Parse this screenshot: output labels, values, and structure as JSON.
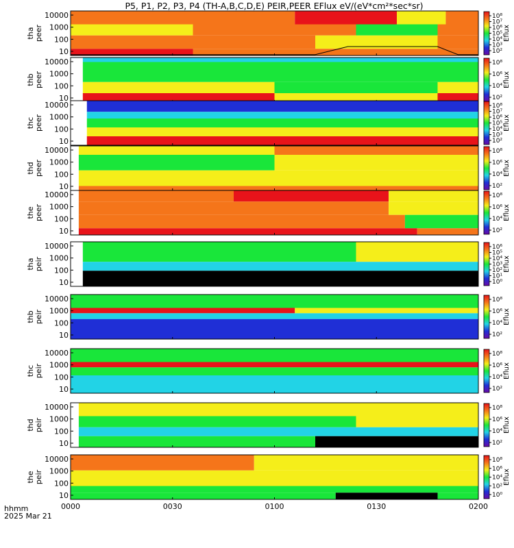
{
  "title": "P5, P1, P2, P3, P4 (TH-A,B,C,D,E) PEIR,PEER EFlux eV/(eV*cm²*sec*sr)",
  "x_axis": {
    "label_line1": "hhmm",
    "label_line2": "2025 Mar 21",
    "ticks": [
      "0000",
      "0030",
      "0100",
      "0130",
      "0200"
    ]
  },
  "colors": {
    "black": "#000000",
    "violet": "#6a0aa8",
    "blue": "#1f2fd6",
    "cyan": "#22d3e6",
    "green": "#19e63a",
    "yellow": "#f5ee1a",
    "orange": "#f5751a",
    "red": "#e8131a",
    "white": "#ffffff"
  },
  "chart_data": [
    {
      "type": "heatmap",
      "probe_label": "tha",
      "species_label": "peer",
      "ylabel": "tha\npeer",
      "cbar_label": "Eflux",
      "cbar_ticks": [
        "10⁸",
        "10⁷",
        "10⁶",
        "10⁵",
        "10⁴",
        "10³",
        "10²"
      ],
      "yticks": [
        "10000",
        "1000",
        "100",
        "10"
      ],
      "x_range": [
        "0000",
        "0200"
      ],
      "bands": [
        {
          "y0": 0.0,
          "y1": 0.3,
          "segments": [
            {
              "t0": 0,
              "t1": 0.55,
              "color": "orange"
            },
            {
              "t0": 0.55,
              "t1": 0.8,
              "color": "red"
            },
            {
              "t0": 0.8,
              "t1": 0.92,
              "color": "yellow"
            },
            {
              "t0": 0.92,
              "t1": 1,
              "color": "orange"
            }
          ]
        },
        {
          "y0": 0.3,
          "y1": 0.55,
          "segments": [
            {
              "t0": 0,
              "t1": 0.3,
              "color": "yellow"
            },
            {
              "t0": 0.3,
              "t1": 0.7,
              "color": "orange"
            },
            {
              "t0": 0.7,
              "t1": 0.9,
              "color": "green"
            },
            {
              "t0": 0.9,
              "t1": 1,
              "color": "orange"
            }
          ]
        },
        {
          "y0": 0.55,
          "y1": 0.85,
          "segments": [
            {
              "t0": 0,
              "t1": 0.6,
              "color": "orange"
            },
            {
              "t0": 0.6,
              "t1": 0.9,
              "color": "yellow"
            },
            {
              "t0": 0.9,
              "t1": 1,
              "color": "orange"
            }
          ]
        },
        {
          "y0": 0.85,
          "y1": 1.0,
          "segments": [
            {
              "t0": 0,
              "t1": 0.3,
              "color": "red"
            },
            {
              "t0": 0.3,
              "t1": 1,
              "color": "orange"
            }
          ]
        }
      ],
      "potential_line": [
        [
          0.0,
          0.98
        ],
        [
          0.6,
          0.98
        ],
        [
          0.68,
          0.8
        ],
        [
          0.9,
          0.8
        ],
        [
          0.95,
          0.98
        ],
        [
          1,
          0.98
        ]
      ]
    },
    {
      "type": "heatmap",
      "probe_label": "thb",
      "species_label": "peer",
      "ylabel": "thb\npeer",
      "cbar_label": "Eflux",
      "cbar_ticks": [
        "10⁸",
        "10⁶",
        "10⁴",
        "10²"
      ],
      "yticks": [
        "10000",
        "1000",
        "100",
        "10"
      ],
      "x_range": [
        "0000",
        "0200"
      ],
      "bands": [
        {
          "y0": 0.0,
          "y1": 0.1,
          "segments": [
            {
              "t0": 0.03,
              "t1": 1,
              "color": "cyan"
            }
          ]
        },
        {
          "y0": 0.1,
          "y1": 0.55,
          "segments": [
            {
              "t0": 0.03,
              "t1": 1,
              "color": "green"
            }
          ]
        },
        {
          "y0": 0.55,
          "y1": 0.8,
          "segments": [
            {
              "t0": 0.03,
              "t1": 0.5,
              "color": "yellow"
            },
            {
              "t0": 0.5,
              "t1": 0.9,
              "color": "green"
            },
            {
              "t0": 0.9,
              "t1": 1,
              "color": "yellow"
            }
          ]
        },
        {
          "y0": 0.8,
          "y1": 1.0,
          "segments": [
            {
              "t0": 0.03,
              "t1": 0.5,
              "color": "red"
            },
            {
              "t0": 0.5,
              "t1": 0.9,
              "color": "yellow"
            },
            {
              "t0": 0.9,
              "t1": 1,
              "color": "red"
            }
          ]
        }
      ]
    },
    {
      "type": "heatmap",
      "probe_label": "thc",
      "species_label": "peer",
      "ylabel": "thc\npeer",
      "cbar_label": "Eflux",
      "cbar_ticks": [
        "10⁸",
        "10⁷",
        "10⁶",
        "10⁵",
        "10⁴",
        "10³",
        "10²"
      ],
      "yticks": [
        "10000",
        "1000",
        "100",
        "10"
      ],
      "x_range": [
        "0000",
        "0200"
      ],
      "bands": [
        {
          "y0": 0.0,
          "y1": 0.25,
          "segments": [
            {
              "t0": 0.04,
              "t1": 1,
              "color": "blue"
            }
          ]
        },
        {
          "y0": 0.25,
          "y1": 0.4,
          "segments": [
            {
              "t0": 0.04,
              "t1": 1,
              "color": "cyan"
            }
          ]
        },
        {
          "y0": 0.4,
          "y1": 0.6,
          "segments": [
            {
              "t0": 0.04,
              "t1": 1,
              "color": "green"
            }
          ]
        },
        {
          "y0": 0.6,
          "y1": 0.8,
          "segments": [
            {
              "t0": 0.04,
              "t1": 1,
              "color": "yellow"
            }
          ]
        },
        {
          "y0": 0.8,
          "y1": 1.0,
          "segments": [
            {
              "t0": 0.04,
              "t1": 1,
              "color": "red"
            }
          ]
        }
      ]
    },
    {
      "type": "heatmap",
      "probe_label": "thd",
      "species_label": "peer",
      "ylabel": "thd\npeer",
      "cbar_label": "Eflux",
      "cbar_ticks": [
        "10⁸",
        "10⁶",
        "10⁴",
        "10²"
      ],
      "yticks": [
        "10000",
        "1000",
        "100",
        "10"
      ],
      "x_range": [
        "0000",
        "0200"
      ],
      "bands": [
        {
          "y0": 0.0,
          "y1": 0.2,
          "segments": [
            {
              "t0": 0.02,
              "t1": 0.5,
              "color": "yellow"
            },
            {
              "t0": 0.5,
              "t1": 1,
              "color": "orange"
            }
          ]
        },
        {
          "y0": 0.2,
          "y1": 0.55,
          "segments": [
            {
              "t0": 0.02,
              "t1": 0.5,
              "color": "green"
            },
            {
              "t0": 0.5,
              "t1": 1,
              "color": "yellow"
            }
          ]
        },
        {
          "y0": 0.55,
          "y1": 0.9,
          "segments": [
            {
              "t0": 0.02,
              "t1": 1,
              "color": "yellow"
            }
          ]
        },
        {
          "y0": 0.9,
          "y1": 1.0,
          "segments": [
            {
              "t0": 0.02,
              "t1": 1,
              "color": "orange"
            }
          ]
        }
      ]
    },
    {
      "type": "heatmap",
      "probe_label": "the",
      "species_label": "peer",
      "ylabel": "the\npeer",
      "cbar_label": "Eflux",
      "cbar_ticks": [
        "10⁸",
        "10⁶",
        "10⁴",
        "10²"
      ],
      "yticks": [
        "10000",
        "1000",
        "100",
        "10"
      ],
      "x_range": [
        "0000",
        "0200"
      ],
      "bands": [
        {
          "y0": 0.0,
          "y1": 0.25,
          "segments": [
            {
              "t0": 0.02,
              "t1": 0.4,
              "color": "orange"
            },
            {
              "t0": 0.4,
              "t1": 0.78,
              "color": "red"
            },
            {
              "t0": 0.78,
              "t1": 1,
              "color": "yellow"
            }
          ]
        },
        {
          "y0": 0.25,
          "y1": 0.55,
          "segments": [
            {
              "t0": 0.02,
              "t1": 0.78,
              "color": "orange"
            },
            {
              "t0": 0.78,
              "t1": 1,
              "color": "yellow"
            }
          ]
        },
        {
          "y0": 0.55,
          "y1": 0.85,
          "segments": [
            {
              "t0": 0.02,
              "t1": 0.82,
              "color": "orange"
            },
            {
              "t0": 0.82,
              "t1": 1,
              "color": "green"
            }
          ]
        },
        {
          "y0": 0.85,
          "y1": 1.0,
          "segments": [
            {
              "t0": 0.02,
              "t1": 0.85,
              "color": "red"
            },
            {
              "t0": 0.85,
              "t1": 1,
              "color": "orange"
            }
          ]
        }
      ]
    },
    {
      "type": "heatmap",
      "probe_label": "tha",
      "species_label": "peir",
      "ylabel": "tha\npeir",
      "cbar_label": "Eflux",
      "cbar_ticks": [
        "10⁶",
        "10⁵",
        "10⁴",
        "10³",
        "10²",
        "10¹",
        "10⁰"
      ],
      "yticks": [
        "10000",
        "1000",
        "100",
        "10"
      ],
      "x_range": [
        "0000",
        "0200"
      ],
      "bands": [
        {
          "y0": 0.0,
          "y1": 0.2,
          "segments": [
            {
              "t0": 0.03,
              "t1": 0.7,
              "color": "green"
            },
            {
              "t0": 0.7,
              "t1": 1,
              "color": "yellow"
            }
          ]
        },
        {
          "y0": 0.2,
          "y1": 0.45,
          "segments": [
            {
              "t0": 0.03,
              "t1": 0.7,
              "color": "green"
            },
            {
              "t0": 0.7,
              "t1": 1,
              "color": "yellow"
            }
          ]
        },
        {
          "y0": 0.45,
          "y1": 0.65,
          "segments": [
            {
              "t0": 0.03,
              "t1": 1,
              "color": "cyan"
            }
          ]
        },
        {
          "y0": 0.65,
          "y1": 1.0,
          "segments": [
            {
              "t0": 0.03,
              "t1": 1,
              "color": "black"
            }
          ]
        }
      ]
    },
    {
      "type": "heatmap",
      "probe_label": "thb",
      "species_label": "peir",
      "ylabel": "thb\npeir",
      "cbar_label": "Eflux",
      "cbar_ticks": [
        "10⁸",
        "10⁶",
        "10⁴",
        "10²"
      ],
      "yticks": [
        "10000",
        "1000",
        "100",
        "10"
      ],
      "x_range": [
        "0000",
        "0200"
      ],
      "bands": [
        {
          "y0": 0.0,
          "y1": 0.3,
          "segments": [
            {
              "t0": 0,
              "t1": 1,
              "color": "green"
            }
          ]
        },
        {
          "y0": 0.3,
          "y1": 0.42,
          "segments": [
            {
              "t0": 0,
              "t1": 0.55,
              "color": "red"
            },
            {
              "t0": 0.55,
              "t1": 1,
              "color": "yellow"
            }
          ]
        },
        {
          "y0": 0.42,
          "y1": 0.55,
          "segments": [
            {
              "t0": 0,
              "t1": 1,
              "color": "cyan"
            }
          ]
        },
        {
          "y0": 0.55,
          "y1": 1.0,
          "segments": [
            {
              "t0": 0,
              "t1": 1,
              "color": "blue"
            }
          ]
        }
      ]
    },
    {
      "type": "heatmap",
      "probe_label": "thc",
      "species_label": "peir",
      "ylabel": "thc\npeir",
      "cbar_label": "Eflux",
      "cbar_ticks": [
        "10⁸",
        "10⁶",
        "10⁴",
        "10²"
      ],
      "yticks": [
        "10000",
        "1000",
        "100",
        "10"
      ],
      "x_range": [
        "0000",
        "0200"
      ],
      "bands": [
        {
          "y0": 0.0,
          "y1": 0.3,
          "segments": [
            {
              "t0": 0,
              "t1": 1,
              "color": "green"
            }
          ]
        },
        {
          "y0": 0.3,
          "y1": 0.42,
          "segments": [
            {
              "t0": 0,
              "t1": 1,
              "color": "red"
            }
          ]
        },
        {
          "y0": 0.42,
          "y1": 0.6,
          "segments": [
            {
              "t0": 0,
              "t1": 1,
              "color": "green"
            }
          ]
        },
        {
          "y0": 0.6,
          "y1": 1.0,
          "segments": [
            {
              "t0": 0,
              "t1": 1,
              "color": "cyan"
            }
          ]
        }
      ]
    },
    {
      "type": "heatmap",
      "probe_label": "thd",
      "species_label": "peir",
      "ylabel": "thd\npeir",
      "cbar_label": "Eflux",
      "cbar_ticks": [
        "10⁸",
        "10⁶",
        "10⁴",
        "10²"
      ],
      "yticks": [
        "10000",
        "1000",
        "100",
        "10"
      ],
      "x_range": [
        "0000",
        "0200"
      ],
      "bands": [
        {
          "y0": 0.0,
          "y1": 0.3,
          "segments": [
            {
              "t0": 0.02,
              "t1": 1,
              "color": "yellow"
            }
          ]
        },
        {
          "y0": 0.3,
          "y1": 0.55,
          "segments": [
            {
              "t0": 0.02,
              "t1": 0.7,
              "color": "green"
            },
            {
              "t0": 0.7,
              "t1": 1,
              "color": "yellow"
            }
          ]
        },
        {
          "y0": 0.55,
          "y1": 0.75,
          "segments": [
            {
              "t0": 0.02,
              "t1": 1,
              "color": "cyan"
            }
          ]
        },
        {
          "y0": 0.75,
          "y1": 1.0,
          "segments": [
            {
              "t0": 0.02,
              "t1": 0.6,
              "color": "green"
            },
            {
              "t0": 0.6,
              "t1": 1,
              "color": "black"
            }
          ]
        }
      ]
    },
    {
      "type": "heatmap",
      "probe_label": "the",
      "species_label": "peir",
      "ylabel": "the\npeir",
      "cbar_label": "Eflux",
      "cbar_ticks": [
        "10⁸",
        "10⁶",
        "10⁴",
        "10²",
        "10⁰"
      ],
      "yticks": [
        "10000",
        "1000",
        "100",
        "10"
      ],
      "x_range": [
        "0000",
        "0200"
      ],
      "bands": [
        {
          "y0": 0.0,
          "y1": 0.35,
          "segments": [
            {
              "t0": 0,
              "t1": 0.45,
              "color": "orange"
            },
            {
              "t0": 0.45,
              "t1": 1,
              "color": "yellow"
            }
          ]
        },
        {
          "y0": 0.35,
          "y1": 0.7,
          "segments": [
            {
              "t0": 0,
              "t1": 1,
              "color": "yellow"
            }
          ]
        },
        {
          "y0": 0.7,
          "y1": 0.85,
          "segments": [
            {
              "t0": 0,
              "t1": 1,
              "color": "green"
            }
          ]
        },
        {
          "y0": 0.85,
          "y1": 1.0,
          "segments": [
            {
              "t0": 0,
              "t1": 0.65,
              "color": "green"
            },
            {
              "t0": 0.65,
              "t1": 0.9,
              "color": "black"
            },
            {
              "t0": 0.9,
              "t1": 1,
              "color": "green"
            }
          ]
        }
      ]
    }
  ]
}
